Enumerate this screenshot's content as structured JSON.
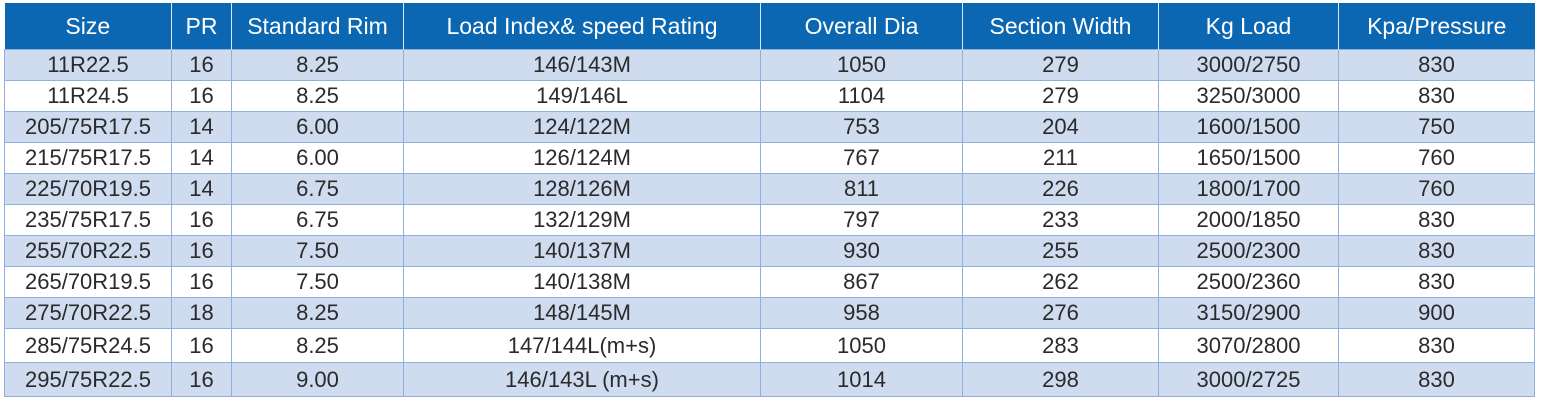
{
  "table": {
    "headers": [
      "Size",
      "PR",
      "Standard Rim",
      "Load Index& speed Rating",
      "Overall Dia",
      "Section Width",
      "Kg Load",
      "Kpa/Pressure"
    ],
    "rows": [
      [
        "11R22.5",
        "16",
        "8.25",
        "146/143M",
        "1050",
        "279",
        "3000/2750",
        "830"
      ],
      [
        "11R24.5",
        "16",
        "8.25",
        "149/146L",
        "1104",
        "279",
        "3250/3000",
        "830"
      ],
      [
        "205/75R17.5",
        "14",
        "6.00",
        "124/122M",
        "753",
        "204",
        "1600/1500",
        "750"
      ],
      [
        "215/75R17.5",
        "14",
        "6.00",
        "126/124M",
        "767",
        "211",
        "1650/1500",
        "760"
      ],
      [
        "225/70R19.5",
        "14",
        "6.75",
        "128/126M",
        "811",
        "226",
        "1800/1700",
        "760"
      ],
      [
        "235/75R17.5",
        "16",
        "6.75",
        "132/129M",
        "797",
        "233",
        "2000/1850",
        "830"
      ],
      [
        "255/70R22.5",
        "16",
        "7.50",
        "140/137M",
        "930",
        "255",
        "2500/2300",
        "830"
      ],
      [
        "265/70R19.5",
        "16",
        "7.50",
        "140/138M",
        "867",
        "262",
        "2500/2360",
        "830"
      ],
      [
        "275/70R22.5",
        "18",
        "8.25",
        "148/145M",
        "958",
        "276",
        "3150/2900",
        "900"
      ],
      [
        "285/75R24.5",
        "16",
        "8.25",
        "147/144L(m+s)",
        "1050",
        "283",
        "3070/2800",
        "830"
      ],
      [
        "295/75R22.5",
        "16",
        "9.00",
        "146/143L (m+s)",
        "1014",
        "298",
        "3000/2725",
        "830"
      ]
    ]
  },
  "colors": {
    "header_bg": "#0c67b3",
    "header_text": "#ffffff",
    "row_alt_bg": "#cfdcf0",
    "row_plain_bg": "#ffffff",
    "grid_line": "#8fb0dc"
  }
}
